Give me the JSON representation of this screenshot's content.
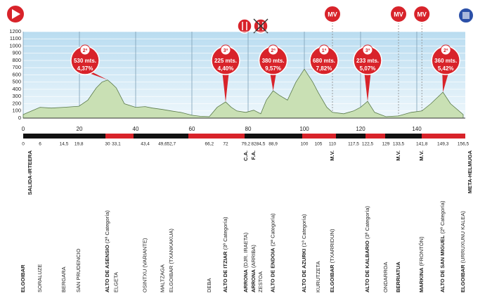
{
  "chart_data": {
    "type": "area",
    "color": "#c9e0b4",
    "line_color": "#5a7a4a",
    "x": [
      0,
      3,
      6,
      10,
      14.5,
      19.8,
      23,
      26,
      28,
      30,
      31.5,
      33.1,
      36,
      40,
      43.4,
      46,
      49.6,
      52.7,
      56,
      60,
      63,
      66.2,
      69,
      72,
      74,
      76,
      79.2,
      82,
      84.5,
      86.5,
      88.9,
      91,
      94,
      97,
      100,
      103,
      105,
      108,
      110,
      114,
      117.5,
      120,
      122.5,
      125,
      129,
      133.5,
      138,
      141.8,
      145,
      149.3,
      152,
      156.5
    ],
    "values": [
      50,
      100,
      150,
      140,
      150,
      165,
      250,
      420,
      500,
      530,
      480,
      420,
      200,
      150,
      160,
      140,
      120,
      100,
      80,
      40,
      25,
      20,
      150,
      225,
      150,
      100,
      80,
      110,
      60,
      250,
      380,
      320,
      250,
      500,
      680,
      500,
      350,
      150,
      80,
      60,
      100,
      150,
      233,
      80,
      20,
      30,
      80,
      100,
      200,
      360,
      200,
      50
    ],
    "xlim": [
      0,
      156.5
    ],
    "ylim": [
      0,
      1200
    ],
    "yticks": [
      0,
      100,
      200,
      300,
      400,
      500,
      600,
      700,
      800,
      900,
      1000,
      1100,
      1200
    ],
    "xticks": [
      0,
      20,
      40,
      60,
      80,
      100,
      120,
      140
    ],
    "grid": true,
    "climbs": [
      {
        "km": 30,
        "altitude": 530,
        "category": "2ª",
        "altitude_label": "530 mts.",
        "grade": "4,37%"
      },
      {
        "km": 72,
        "altitude": 225,
        "category": "3ª",
        "altitude_label": "225 mts.",
        "grade": "4,40%"
      },
      {
        "km": 88.9,
        "altitude": 380,
        "category": "2ª",
        "altitude_label": "380 mts.",
        "grade": "9,57%"
      },
      {
        "km": 100,
        "altitude": 680,
        "category": "1ª",
        "altitude_label": "680 mts.",
        "grade": "7,82%"
      },
      {
        "km": 122.5,
        "altitude": 233,
        "category": "3ª",
        "altitude_label": "233 mts.",
        "grade": "5,07%"
      },
      {
        "km": 149.3,
        "altitude": 360,
        "category": "2ª",
        "altitude_label": "360 mts.",
        "grade": "5,42%"
      }
    ],
    "mv_markers": [
      {
        "km": 110,
        "label": "MV"
      },
      {
        "km": 133.5,
        "label": "MV"
      },
      {
        "km": 141.8,
        "label": "MV"
      }
    ],
    "waypoints": [
      {
        "km": 0,
        "name": "ELGOIBAR",
        "bold": true,
        "sub": "SALIDA-IRTEERA"
      },
      {
        "km": 6,
        "name": "SORALUZE"
      },
      {
        "km": {
          "value": 14.5,
          "label": "14,5"
        },
        "name": "BERGARA"
      },
      {
        "km": {
          "value": 19.8,
          "label": "19,8"
        },
        "name": "SAN PRUDENCIO"
      },
      {
        "km": 30,
        "name": "ALTO DE ASENSIO",
        "bold": true,
        "detail": "(2ª Categoría)"
      },
      {
        "km": {
          "value": 33.1,
          "label": "33,1"
        },
        "name": "ELGETA"
      },
      {
        "km": {
          "value": 43.4,
          "label": "43,4"
        },
        "name": "OSINTXU (VARIANTE)"
      },
      {
        "km": {
          "value": 49.6,
          "label": "49,6"
        },
        "name": "MALTZAGA"
      },
      {
        "km": {
          "value": 52.7,
          "label": "52,7"
        },
        "name": "ELGOIBAR (TXANKAKUA)"
      },
      {
        "km": {
          "value": 66.2,
          "label": "66,2"
        },
        "name": "DEBA"
      },
      {
        "km": 72,
        "name": "ALTO DE ITZIAR",
        "bold": true,
        "detail": "(3ª Categoría)"
      },
      {
        "km": {
          "value": 79.2,
          "label": "79,2"
        },
        "name": "ARRONA",
        "bold": true,
        "detail": "(DJR. IRAETA)",
        "tag": "C.A."
      },
      {
        "km": 82,
        "name": "ARRONA",
        "bold": true,
        "detail": "(ARRIBA)",
        "tag": "F.A."
      },
      {
        "km": {
          "value": 84.5,
          "label": "84,5"
        },
        "name": "ZESTOA"
      },
      {
        "km": {
          "value": 88.9,
          "label": "88,9"
        },
        "name": "ALTO DE ENDOIA",
        "bold": true,
        "detail": "(2ª Categoría)"
      },
      {
        "km": 100,
        "name": "ALTO DE AZURKI",
        "bold": true,
        "detail": "(1ª Categoría)"
      },
      {
        "km": 105,
        "name": "KURUTZETA"
      },
      {
        "km": 110,
        "name": "ELGOIBAR",
        "bold": true,
        "detail": "(TXARRIDUN)",
        "tag": "M.V."
      },
      {
        "km": {
          "value": 117.5,
          "label": "117,5"
        },
        "name": null
      },
      {
        "km": {
          "value": 122.5,
          "label": "122,5"
        },
        "name": "ALTO DE KALBARIO",
        "bold": true,
        "detail": "(3ª Categoría)"
      },
      {
        "km": 129,
        "name": "ONDARROA"
      },
      {
        "km": {
          "value": 133.5,
          "label": "133,5"
        },
        "name": "BERRIATUA",
        "bold": true,
        "tag": "M.V."
      },
      {
        "km": {
          "value": 141.8,
          "label": "141,8"
        },
        "name": "MARKINA",
        "bold": true,
        "detail": "(FRONTÓN)",
        "tag": "M.V."
      },
      {
        "km": {
          "value": 149.3,
          "label": "149,3"
        },
        "name": "ALTO DE SAN MIGUEL",
        "bold": true,
        "detail": "(2ª Categoría)"
      },
      {
        "km": {
          "value": 156.5,
          "label": "156,5"
        },
        "name": "ELGOIBAR",
        "bold": true,
        "detail": "(URRUXUNU KALEA)",
        "sub": "META-HELMUGA"
      }
    ]
  }
}
